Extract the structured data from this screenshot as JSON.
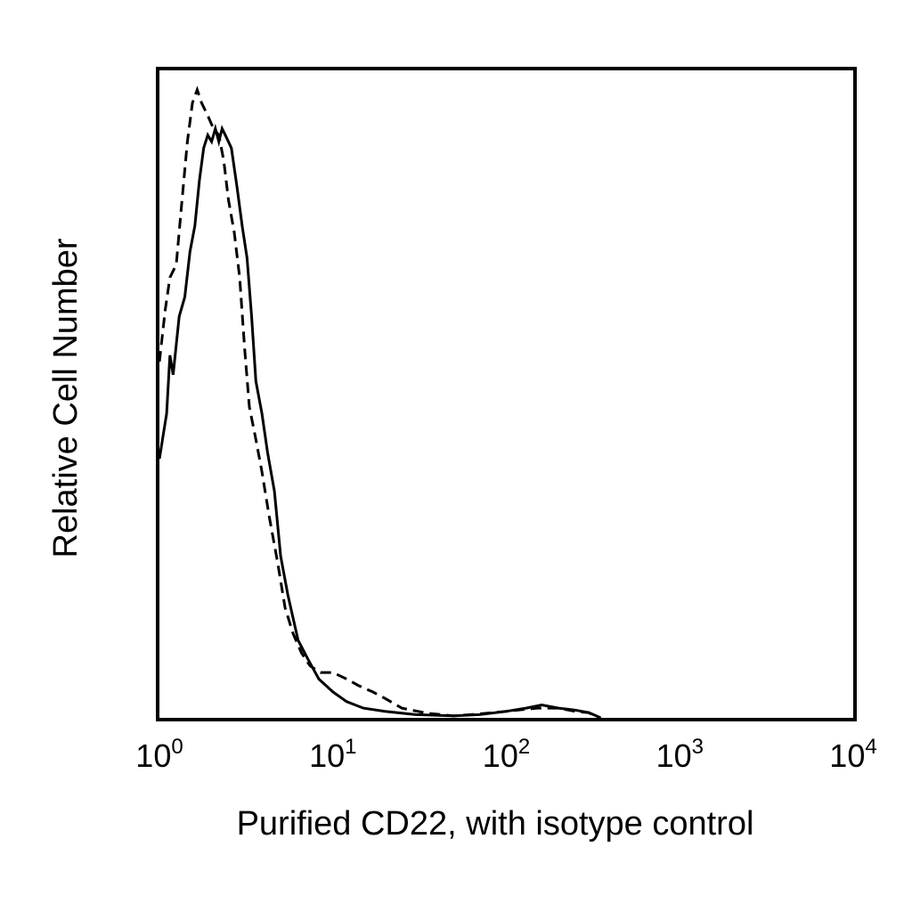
{
  "chart_data": {
    "type": "line",
    "title": "",
    "xlabel": "Purified CD22, with isotype control",
    "ylabel": "Relative Cell Number",
    "x_scale": "log",
    "xlim": [
      1,
      10000
    ],
    "ylim": [
      0,
      100
    ],
    "grid": false,
    "legend": "none",
    "x_ticks": [
      {
        "value": 1,
        "base": "10",
        "exp": "0"
      },
      {
        "value": 10,
        "base": "10",
        "exp": "1"
      },
      {
        "value": 100,
        "base": "10",
        "exp": "2"
      },
      {
        "value": 1000,
        "base": "10",
        "exp": "3"
      },
      {
        "value": 10000,
        "base": "10",
        "exp": "4"
      }
    ],
    "series": [
      {
        "style": "solid",
        "color": "#000000",
        "points": [
          [
            1.0,
            40
          ],
          [
            1.1,
            47
          ],
          [
            1.15,
            56
          ],
          [
            1.2,
            53
          ],
          [
            1.3,
            62
          ],
          [
            1.4,
            65
          ],
          [
            1.5,
            72
          ],
          [
            1.6,
            76
          ],
          [
            1.7,
            83
          ],
          [
            1.8,
            88
          ],
          [
            1.9,
            90
          ],
          [
            2.0,
            89
          ],
          [
            2.1,
            91
          ],
          [
            2.2,
            89
          ],
          [
            2.3,
            91
          ],
          [
            2.4,
            90
          ],
          [
            2.6,
            88
          ],
          [
            2.8,
            82
          ],
          [
            3.0,
            76
          ],
          [
            3.2,
            71
          ],
          [
            3.4,
            62
          ],
          [
            3.6,
            52
          ],
          [
            3.9,
            47
          ],
          [
            4.2,
            41
          ],
          [
            4.6,
            35
          ],
          [
            5.0,
            25
          ],
          [
            5.5,
            19
          ],
          [
            6.3,
            12
          ],
          [
            7.2,
            9
          ],
          [
            8.3,
            6
          ],
          [
            10,
            4
          ],
          [
            12,
            2.5
          ],
          [
            15,
            1.5
          ],
          [
            20,
            1
          ],
          [
            30,
            0.5
          ],
          [
            50,
            0.3
          ],
          [
            70,
            0.5
          ],
          [
            100,
            1
          ],
          [
            130,
            1.5
          ],
          [
            160,
            2
          ],
          [
            200,
            1.5
          ],
          [
            250,
            1.2
          ],
          [
            300,
            0.8
          ],
          [
            350,
            0
          ]
        ]
      },
      {
        "style": "dashed",
        "color": "#000000",
        "points": [
          [
            1.0,
            55
          ],
          [
            1.08,
            63
          ],
          [
            1.15,
            68
          ],
          [
            1.25,
            70
          ],
          [
            1.35,
            80
          ],
          [
            1.45,
            89
          ],
          [
            1.55,
            95
          ],
          [
            1.65,
            97
          ],
          [
            1.75,
            95
          ],
          [
            1.9,
            93
          ],
          [
            2.05,
            91
          ],
          [
            2.2,
            90
          ],
          [
            2.35,
            86
          ],
          [
            2.5,
            80
          ],
          [
            2.7,
            75
          ],
          [
            2.9,
            68
          ],
          [
            3.1,
            57
          ],
          [
            3.3,
            48
          ],
          [
            3.6,
            43
          ],
          [
            3.9,
            38
          ],
          [
            4.3,
            31
          ],
          [
            4.8,
            24
          ],
          [
            5.3,
            17
          ],
          [
            5.9,
            13
          ],
          [
            6.6,
            10
          ],
          [
            7.4,
            8
          ],
          [
            8.5,
            7
          ],
          [
            10,
            7
          ],
          [
            12,
            6
          ],
          [
            14,
            5
          ],
          [
            17,
            4
          ],
          [
            20,
            3
          ],
          [
            25,
            1.5
          ],
          [
            35,
            0.7
          ],
          [
            50,
            0.3
          ],
          [
            70,
            0.6
          ],
          [
            100,
            1
          ],
          [
            150,
            1.5
          ],
          [
            200,
            1.5
          ],
          [
            250,
            1
          ],
          [
            300,
            0.8
          ],
          [
            330,
            0
          ]
        ]
      }
    ]
  }
}
